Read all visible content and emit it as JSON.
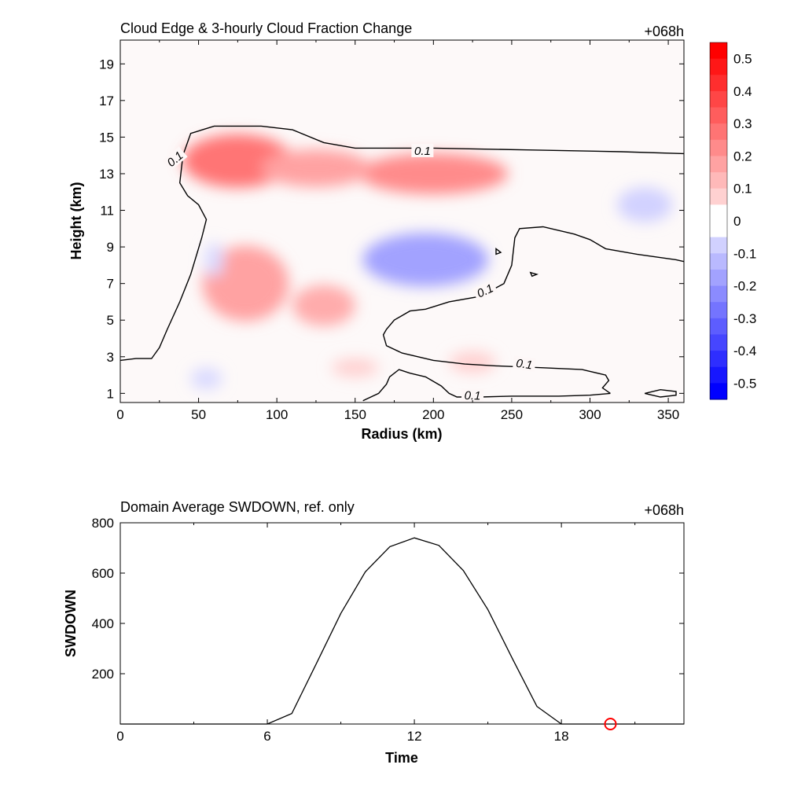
{
  "chart_data": [
    {
      "type": "heatmap",
      "title": "Cloud Edge & 3-hourly Cloud Fraction Change",
      "time_label": "+068h",
      "xlabel": "Radius (km)",
      "ylabel": "Height (km)",
      "xlim": [
        0,
        360
      ],
      "ylim": [
        0.5,
        20.3
      ],
      "x_ticks": [
        "0",
        "50",
        "100",
        "150",
        "200",
        "250",
        "300",
        "350"
      ],
      "y_ticks": [
        "1",
        "3",
        "5",
        "7",
        "9",
        "11",
        "13",
        "15",
        "17",
        "19"
      ],
      "colorbar": {
        "min": -0.55,
        "max": 0.55,
        "ticks": [
          "0.5",
          "0.4",
          "0.3",
          "0.2",
          "0.1",
          "0",
          "-0.1",
          "-0.2",
          "-0.3",
          "-0.4",
          "-0.5"
        ],
        "negative_color": "#0000ff",
        "zero_color": "#ffffff",
        "positive_color": "#ff0000"
      },
      "contour_level_label": "0.1",
      "features": [
        {
          "kind": "positive",
          "center": [
            75,
            13.7
          ],
          "value": 0.3,
          "note": "upper-level increase core"
        },
        {
          "kind": "positive",
          "center": [
            200,
            13.0
          ],
          "value": 0.25
        },
        {
          "kind": "positive",
          "center": [
            125,
            13.3
          ],
          "value": 0.2
        },
        {
          "kind": "positive",
          "center": [
            80,
            7.0
          ],
          "value": 0.2
        },
        {
          "kind": "positive",
          "center": [
            130,
            5.8
          ],
          "value": 0.18
        },
        {
          "kind": "positive",
          "center": [
            225,
            2.7
          ],
          "value": 0.1
        },
        {
          "kind": "positive",
          "center": [
            150,
            2.4
          ],
          "value": 0.1
        },
        {
          "kind": "negative",
          "center": [
            195,
            8.3
          ],
          "value": -0.2
        },
        {
          "kind": "negative",
          "center": [
            335,
            11.3
          ],
          "value": -0.1
        },
        {
          "kind": "negative",
          "center": [
            60,
            8.3
          ],
          "value": -0.08
        },
        {
          "kind": "negative",
          "center": [
            55,
            1.8
          ],
          "value": -0.08
        }
      ],
      "contours": [
        {
          "level": 0.1,
          "points": [
            [
              0,
              2.8
            ],
            [
              10,
              2.9
            ],
            [
              20,
              2.9
            ],
            [
              25,
              3.5
            ],
            [
              30,
              4.5
            ],
            [
              38,
              6.0
            ],
            [
              45,
              7.5
            ],
            [
              52,
              9.5
            ],
            [
              55,
              10.5
            ],
            [
              50,
              11.3
            ],
            [
              43,
              11.8
            ],
            [
              38,
              12.5
            ],
            [
              40,
              14.0
            ],
            [
              45,
              15.2
            ],
            [
              60,
              15.6
            ],
            [
              90,
              15.6
            ],
            [
              110,
              15.4
            ],
            [
              130,
              14.7
            ],
            [
              150,
              14.4
            ],
            [
              200,
              14.4
            ],
            [
              260,
              14.3
            ],
            [
              320,
              14.2
            ],
            [
              360,
              14.1
            ]
          ]
        },
        {
          "level": 0.1,
          "points": [
            [
              360,
              8.2
            ],
            [
              355,
              8.3
            ],
            [
              330,
              8.6
            ],
            [
              310,
              8.9
            ],
            [
              300,
              9.4
            ],
            [
              290,
              9.7
            ],
            [
              270,
              10.1
            ],
            [
              255,
              10.0
            ],
            [
              252,
              9.5
            ],
            [
              250,
              8.0
            ],
            [
              245,
              7.0
            ],
            [
              230,
              6.3
            ],
            [
              210,
              6.0
            ],
            [
              195,
              5.6
            ],
            [
              185,
              5.5
            ],
            [
              175,
              5.0
            ],
            [
              172,
              4.7
            ],
            [
              170,
              4.5
            ],
            [
              168,
              4.2
            ],
            [
              170,
              3.6
            ],
            [
              180,
              3.2
            ],
            [
              200,
              2.8
            ],
            [
              220,
              2.6
            ],
            [
              240,
              2.5
            ],
            [
              270,
              2.4
            ],
            [
              295,
              2.3
            ],
            [
              310,
              2.0
            ],
            [
              312,
              1.7
            ],
            [
              308,
              1.3
            ],
            [
              313,
              1.0
            ]
          ]
        },
        {
          "level": 0.1,
          "points": [
            [
              313,
              1.0
            ],
            [
              300,
              0.9
            ],
            [
              280,
              0.85
            ],
            [
              250,
              0.85
            ],
            [
              230,
              0.8
            ],
            [
              215,
              0.8
            ],
            [
              210,
              1.0
            ],
            [
              205,
              1.4
            ],
            [
              195,
              1.9
            ],
            [
              185,
              2.1
            ],
            [
              178,
              2.3
            ],
            [
              172,
              1.9
            ],
            [
              170,
              1.5
            ],
            [
              165,
              1.0
            ],
            [
              155,
              0.6
            ]
          ]
        },
        {
          "level": 0.1,
          "points": [
            [
              335,
              1.0
            ],
            [
              345,
              1.2
            ],
            [
              355,
              1.1
            ],
            [
              355,
              0.9
            ],
            [
              345,
              0.8
            ],
            [
              335,
              1.0
            ]
          ],
          "closed": true
        },
        {
          "level": 0.1,
          "points": [
            [
              240,
              8.9
            ],
            [
              243,
              8.7
            ],
            [
              240,
              8.6
            ],
            [
              240,
              8.9
            ]
          ],
          "closed": true
        },
        {
          "level": 0.1,
          "points": [
            [
              262,
              7.6
            ],
            [
              266,
              7.5
            ],
            [
              263,
              7.4
            ],
            [
              262,
              7.6
            ]
          ],
          "closed": true
        }
      ],
      "contour_labels": [
        {
          "x": 193,
          "y": 14.25,
          "rotate": 0
        },
        {
          "x": 35,
          "y": 13.8,
          "rotate": -40
        },
        {
          "x": 233,
          "y": 6.6,
          "rotate": -25
        },
        {
          "x": 258,
          "y": 2.6,
          "rotate": 8
        },
        {
          "x": 225,
          "y": 0.88,
          "rotate": 2
        }
      ]
    },
    {
      "type": "line",
      "title": "Domain Average SWDOWN, ref. only",
      "time_label": "+068h",
      "xlabel": "Time",
      "ylabel": "SWDOWN",
      "xlim": [
        0,
        23
      ],
      "ylim": [
        0,
        800
      ],
      "x_ticks": [
        "0",
        "6",
        "12",
        "18"
      ],
      "y_ticks": [
        "200",
        "400",
        "600",
        "800"
      ],
      "x": [
        0,
        1,
        2,
        3,
        4,
        5,
        6,
        7,
        8,
        9,
        10,
        11,
        12,
        13,
        14,
        15,
        16,
        17,
        18,
        19,
        20,
        21,
        22,
        23
      ],
      "y": [
        0,
        0,
        0,
        0,
        0,
        0,
        0,
        42,
        240,
        440,
        605,
        705,
        740,
        710,
        610,
        455,
        260,
        70,
        0,
        0,
        0,
        0,
        0,
        0
      ],
      "marker": {
        "x": 20,
        "y": 0,
        "color": "#ff0000"
      },
      "color": "#000000"
    }
  ]
}
